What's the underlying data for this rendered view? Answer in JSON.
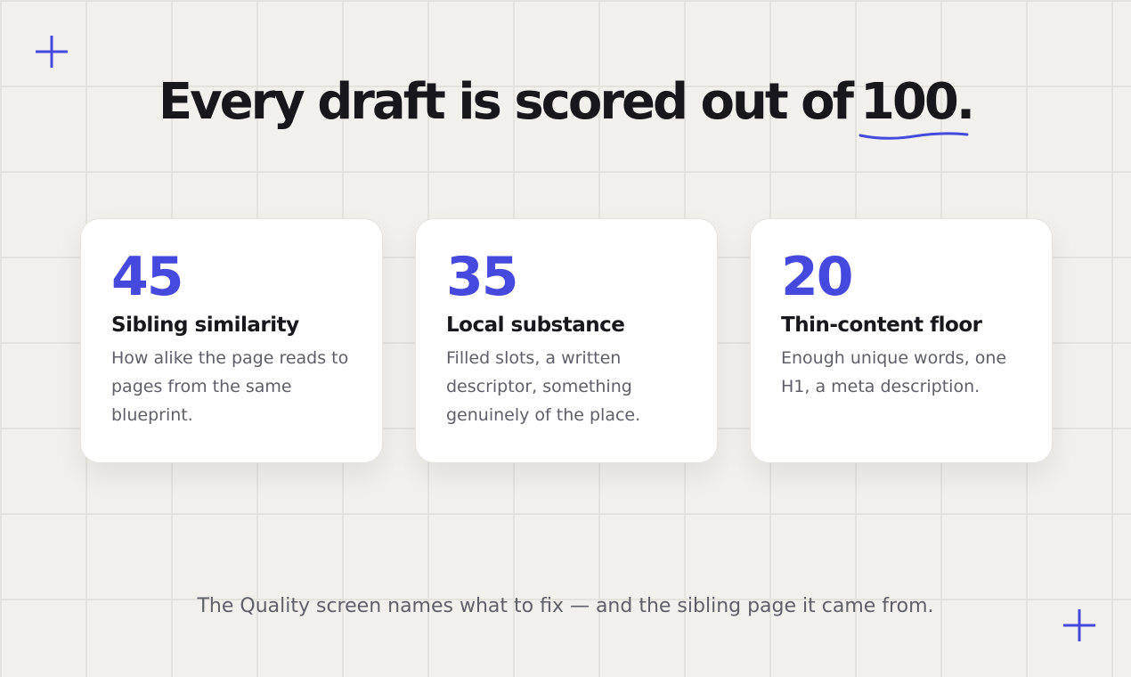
{
  "heading": {
    "text": "Every draft is scored out of",
    "highlight": "100",
    "end": "."
  },
  "cards": [
    {
      "score": 45,
      "title": "Sibling similarity",
      "body": "How alike the page reads to pages from the same blueprint."
    },
    {
      "score": 35,
      "title": "Local substance",
      "body": "Filled slots, a written descriptor, something genuinely of the place."
    },
    {
      "score": 20,
      "title": "Thin-content floor",
      "body": "Enough unique words, one H1, a meta description."
    }
  ],
  "footer": "The Quality screen names what to fix — and the sibling page it came from."
}
